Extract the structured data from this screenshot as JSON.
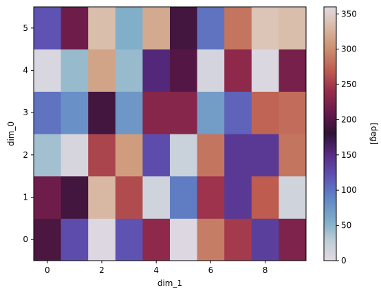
{
  "chart_data": {
    "type": "heatmap",
    "title": "",
    "xlabel": "dim_1",
    "ylabel": "dim_0",
    "x": [
      0,
      1,
      2,
      3,
      4,
      5,
      6,
      7,
      8,
      9
    ],
    "y": [
      0,
      1,
      2,
      3,
      4,
      5
    ],
    "x_ticks": [
      "0",
      "2",
      "4",
      "6",
      "8"
    ],
    "y_ticks": [
      "0",
      "1",
      "2",
      "3",
      "4",
      "5"
    ],
    "colormap": "twilight_shifted",
    "colorbar": {
      "label": "[deg]",
      "range": [
        0,
        360
      ],
      "ticks": [
        "0",
        "50",
        "100",
        "150",
        "200",
        "250",
        "300",
        "350"
      ]
    },
    "grid": false,
    "values": [
      [
        195,
        125,
        5,
        120,
        235,
        5,
        290,
        250,
        135,
        225
      ],
      [
        215,
        190,
        330,
        260,
        15,
        95,
        245,
        140,
        270,
        15
      ],
      [
        40,
        10,
        255,
        310,
        125,
        20,
        285,
        140,
        140,
        285
      ],
      [
        100,
        80,
        190,
        75,
        230,
        230,
        70,
        110,
        275,
        280
      ],
      [
        8,
        45,
        315,
        45,
        155,
        200,
        12,
        235,
        6,
        220
      ],
      [
        120,
        215,
        335,
        55,
        320,
        190,
        100,
        285,
        340,
        335
      ]
    ]
  }
}
